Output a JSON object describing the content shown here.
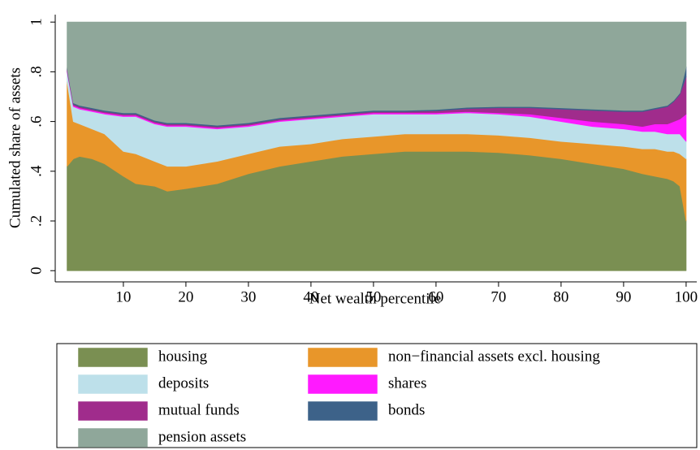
{
  "chart_data": {
    "type": "stacked_area",
    "x_label": "Net wealth percentile",
    "y_label": "Cumulated share of assets",
    "x": [
      1,
      2,
      3,
      5,
      7,
      10,
      12,
      15,
      17,
      20,
      25,
      30,
      35,
      40,
      45,
      50,
      55,
      60,
      65,
      70,
      75,
      80,
      85,
      90,
      93,
      95,
      97,
      98,
      99,
      100
    ],
    "xlim": [
      -0.9,
      101.7
    ],
    "xticks": [
      10,
      20,
      30,
      40,
      50,
      60,
      70,
      80,
      90,
      100
    ],
    "ylim": [
      -0.045,
      1.03
    ],
    "yticks": [
      {
        "value": 0,
        "label": "0"
      },
      {
        "value": 0.2,
        "label": ".2"
      },
      {
        "value": 0.4,
        "label": ".4"
      },
      {
        "value": 0.6,
        "label": ".6"
      },
      {
        "value": 0.8,
        "label": ".8"
      },
      {
        "value": 1,
        "label": "1"
      }
    ],
    "legend_columns": 2,
    "series": [
      {
        "name": "housing",
        "color": "#7a8f52",
        "values": [
          0.42,
          0.45,
          0.46,
          0.45,
          0.43,
          0.38,
          0.35,
          0.34,
          0.32,
          0.33,
          0.35,
          0.39,
          0.42,
          0.44,
          0.46,
          0.47,
          0.48,
          0.48,
          0.48,
          0.475,
          0.465,
          0.45,
          0.43,
          0.41,
          0.39,
          0.38,
          0.37,
          0.36,
          0.34,
          0.2
        ]
      },
      {
        "name": "non−financial assets excl. housing",
        "color": "#e8962a",
        "values": [
          0.34,
          0.15,
          0.13,
          0.12,
          0.12,
          0.1,
          0.12,
          0.1,
          0.1,
          0.09,
          0.09,
          0.08,
          0.08,
          0.07,
          0.07,
          0.07,
          0.07,
          0.07,
          0.07,
          0.07,
          0.07,
          0.07,
          0.08,
          0.09,
          0.1,
          0.11,
          0.11,
          0.12,
          0.13,
          0.25
        ]
      },
      {
        "name": "deposits",
        "color": "#bde0ea",
        "values": [
          0.04,
          0.06,
          0.06,
          0.07,
          0.08,
          0.14,
          0.15,
          0.15,
          0.16,
          0.16,
          0.13,
          0.11,
          0.1,
          0.1,
          0.09,
          0.09,
          0.08,
          0.08,
          0.085,
          0.085,
          0.085,
          0.08,
          0.07,
          0.07,
          0.07,
          0.07,
          0.07,
          0.07,
          0.08,
          0.07
        ]
      },
      {
        "name": "shares",
        "color": "#ff1aff",
        "values": [
          0.005,
          0.005,
          0.005,
          0.005,
          0.005,
          0.005,
          0.005,
          0.005,
          0.005,
          0.005,
          0.005,
          0.005,
          0.005,
          0.005,
          0.005,
          0.005,
          0.005,
          0.005,
          0.005,
          0.005,
          0.01,
          0.015,
          0.02,
          0.02,
          0.02,
          0.03,
          0.04,
          0.05,
          0.06,
          0.11
        ]
      },
      {
        "name": "mutual funds",
        "color": "#a02c8c",
        "values": [
          0.005,
          0.005,
          0.005,
          0.005,
          0.005,
          0.005,
          0.005,
          0.005,
          0.005,
          0.005,
          0.005,
          0.005,
          0.005,
          0.005,
          0.005,
          0.005,
          0.005,
          0.008,
          0.012,
          0.02,
          0.025,
          0.035,
          0.045,
          0.05,
          0.06,
          0.06,
          0.07,
          0.08,
          0.1,
          0.15
        ]
      },
      {
        "name": "bonds",
        "color": "#3d6289",
        "values": [
          0.005,
          0.005,
          0.005,
          0.005,
          0.005,
          0.005,
          0.005,
          0.005,
          0.005,
          0.005,
          0.005,
          0.005,
          0.005,
          0.005,
          0.005,
          0.005,
          0.005,
          0.005,
          0.005,
          0.005,
          0.005,
          0.005,
          0.005,
          0.005,
          0.005,
          0.005,
          0.005,
          0.005,
          0.005,
          0.04
        ]
      },
      {
        "name": "pension assets",
        "color": "#8fa79a",
        "values": [
          0.185,
          0.325,
          0.335,
          0.345,
          0.355,
          0.365,
          0.365,
          0.395,
          0.405,
          0.405,
          0.415,
          0.405,
          0.385,
          0.375,
          0.365,
          0.355,
          0.355,
          0.352,
          0.343,
          0.34,
          0.34,
          0.345,
          0.35,
          0.355,
          0.355,
          0.345,
          0.335,
          0.315,
          0.285,
          0.18
        ]
      }
    ]
  }
}
